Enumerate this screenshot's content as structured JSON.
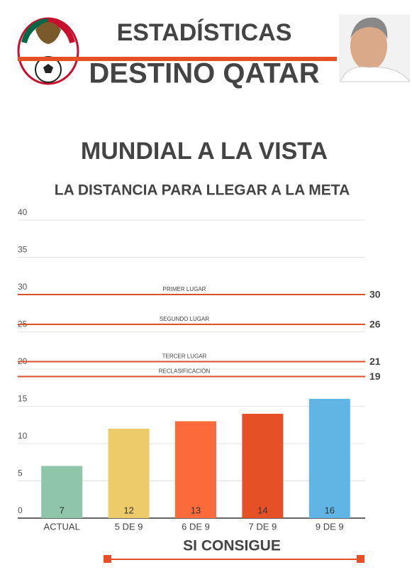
{
  "header": {
    "title": "ESTADÍSTICAS",
    "subtitle": "DESTINO QATAR"
  },
  "chart_data": {
    "type": "bar",
    "title": "MUNDIAL A LA VISTA",
    "subtitle": "LA DISTANCIA PARA LLEGAR A LA META",
    "xlabel": "SI CONSIGUE",
    "categories": [
      "ACTUAL",
      "5 DE 9",
      "6 DE 9",
      "7 DE 9",
      "9 DE 9"
    ],
    "values": [
      7,
      12,
      13,
      14,
      16
    ],
    "colors": [
      "#8fc5a8",
      "#eecb6a",
      "#fb6a3a",
      "#e55026",
      "#60b5e5"
    ],
    "ylim": [
      0,
      40
    ],
    "yticks": [
      0,
      5,
      10,
      15,
      20,
      25,
      30,
      35,
      40
    ],
    "grid": true,
    "reference_lines": [
      {
        "label": "PRIMER LUGAR",
        "value": 30
      },
      {
        "label": "SEGUNDO LUGAR",
        "value": 26
      },
      {
        "label": "TERCER LUGAR",
        "value": 21
      },
      {
        "label": "RECLASIFICACIÓN",
        "value": 19
      }
    ]
  }
}
